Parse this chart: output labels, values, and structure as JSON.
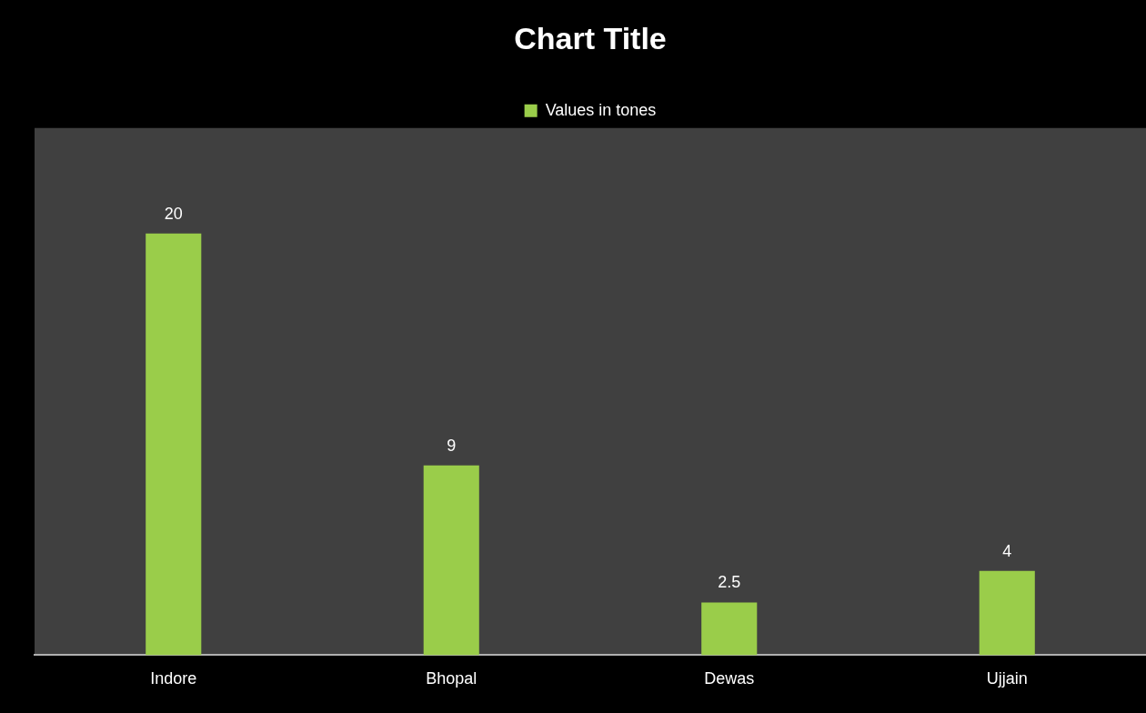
{
  "chart_data": {
    "type": "bar",
    "title": "Chart Title",
    "categories": [
      "Indore",
      "Bhopal",
      "Dewas",
      "Ujjain"
    ],
    "series": [
      {
        "name": "Values in tones",
        "color": "#9acd4a",
        "values": [
          20,
          9,
          2.5,
          4
        ]
      }
    ],
    "data_labels": true,
    "legend": "top",
    "grid": false,
    "tick_labels": "x"
  }
}
